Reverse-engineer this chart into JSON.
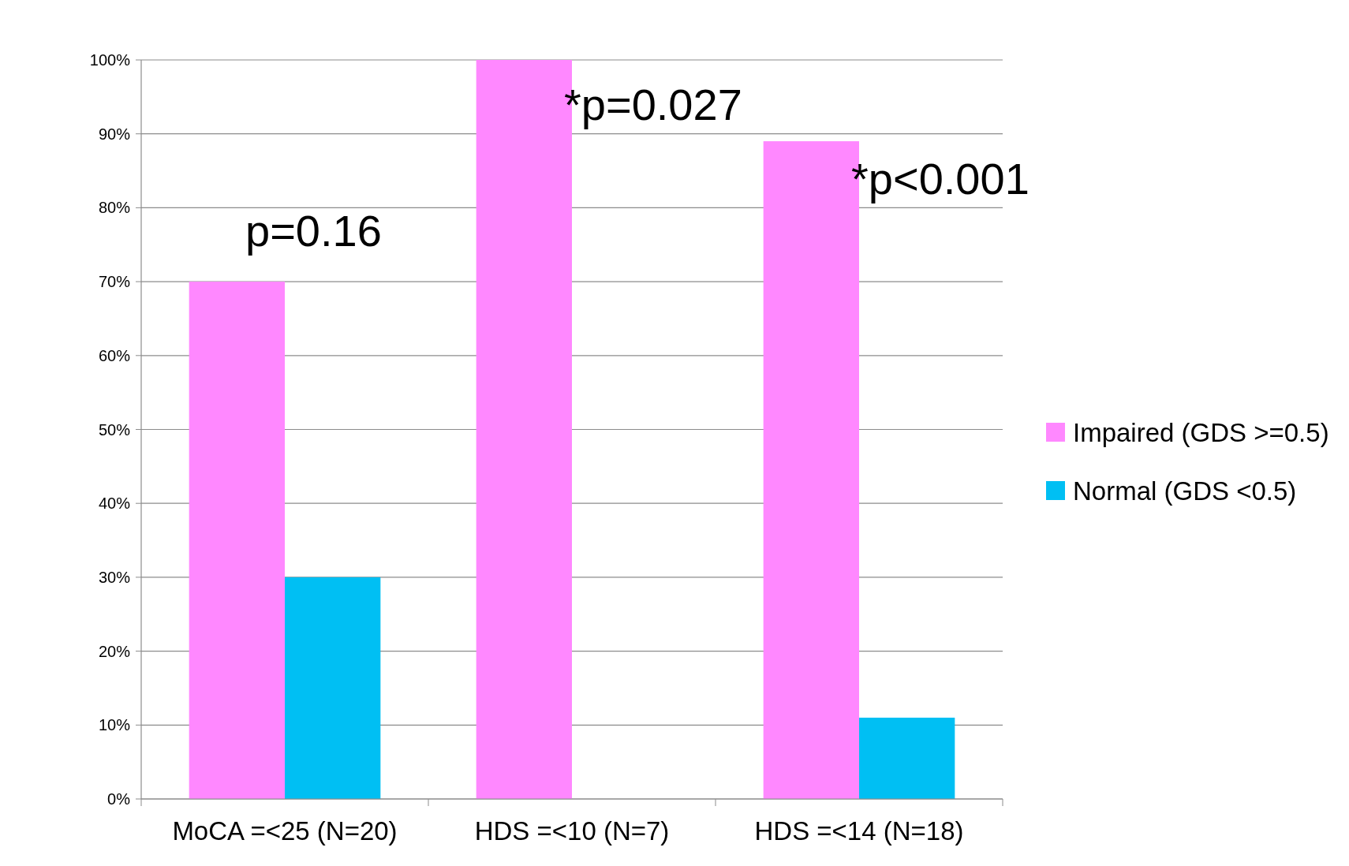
{
  "chart_data": {
    "type": "bar",
    "categories": [
      "MoCA =<25 (N=20)",
      "HDS =<10 (N=7)",
      "HDS =<14 (N=18)"
    ],
    "series": [
      {
        "name": "Impaired (GDS >=0.5)",
        "color": "#ff88ff",
        "values": [
          70,
          100,
          89
        ]
      },
      {
        "name": "Normal (GDS <0.5)",
        "color": "#00bff3",
        "values": [
          30,
          0,
          11
        ]
      }
    ],
    "ylim": [
      0,
      100
    ],
    "yticks": [
      {
        "value": 0,
        "label": "0%"
      },
      {
        "value": 10,
        "label": "10%"
      },
      {
        "value": 20,
        "label": "20%"
      },
      {
        "value": 30,
        "label": "30%"
      },
      {
        "value": 40,
        "label": "40%"
      },
      {
        "value": 50,
        "label": "50%"
      },
      {
        "value": 60,
        "label": "60%"
      },
      {
        "value": 70,
        "label": "70%"
      },
      {
        "value": 80,
        "label": "80%"
      },
      {
        "value": 90,
        "label": "90%"
      },
      {
        "value": 100,
        "label": "100%"
      }
    ],
    "grid": "y",
    "legend": "right",
    "annotations": [
      "p=0.16",
      {
        "text": "*p=0.027",
        "x": "HDS =<10 (N=7)",
        "y": 94
      },
      {
        "text": "*p<0.001",
        "x": "HDS =<14 (N=18)",
        "y": 84
      }
    ]
  }
}
